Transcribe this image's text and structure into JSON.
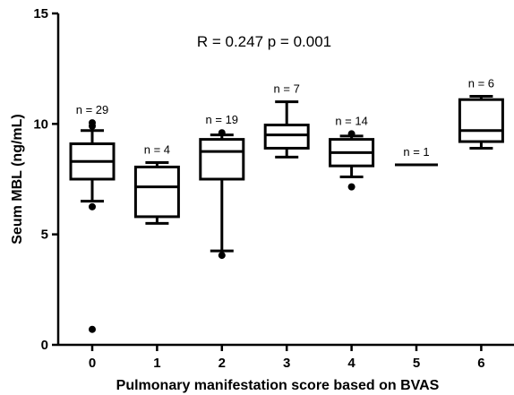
{
  "chart_data": {
    "type": "boxplot",
    "annotation": "R = 0.247   p = 0.001",
    "xlabel": "Pulmonary manifestation score based on BVAS",
    "ylabel": "Seum  MBL (ng/mL)",
    "ylim": [
      0,
      15
    ],
    "yticks": [
      "0",
      "5",
      "10",
      "15"
    ],
    "grid": false,
    "groups": [
      {
        "category": "0",
        "n_label": "n = 29",
        "whisker_low": 6.5,
        "q1": 7.5,
        "median": 8.3,
        "q3": 9.1,
        "whisker_high": 9.7,
        "outliers": [
          0.7,
          6.25,
          9.9,
          10.05
        ]
      },
      {
        "category": "1",
        "n_label": "n = 4",
        "whisker_low": 5.5,
        "q1": 5.8,
        "median": 7.15,
        "q3": 8.05,
        "whisker_high": 8.25,
        "outliers": []
      },
      {
        "category": "2",
        "n_label": "n = 19",
        "whisker_low": 4.25,
        "q1": 7.5,
        "median": 8.75,
        "q3": 9.3,
        "whisker_high": 9.5,
        "outliers": [
          4.05,
          9.6
        ]
      },
      {
        "category": "3",
        "n_label": "n = 7",
        "whisker_low": 8.5,
        "q1": 8.9,
        "median": 9.5,
        "q3": 9.95,
        "whisker_high": 11.0,
        "outliers": []
      },
      {
        "category": "4",
        "n_label": "n = 14",
        "whisker_low": 7.6,
        "q1": 8.1,
        "median": 8.7,
        "q3": 9.3,
        "whisker_high": 9.45,
        "outliers": [
          7.15,
          9.55
        ]
      },
      {
        "category": "5",
        "n_label": "n = 1",
        "whisker_low": 8.15,
        "q1": 8.15,
        "median": 8.15,
        "q3": 8.15,
        "whisker_high": 8.15,
        "outliers": []
      },
      {
        "category": "6",
        "n_label": "n = 6",
        "whisker_low": 8.9,
        "q1": 9.2,
        "median": 9.7,
        "q3": 11.1,
        "whisker_high": 11.25,
        "outliers": []
      }
    ]
  }
}
